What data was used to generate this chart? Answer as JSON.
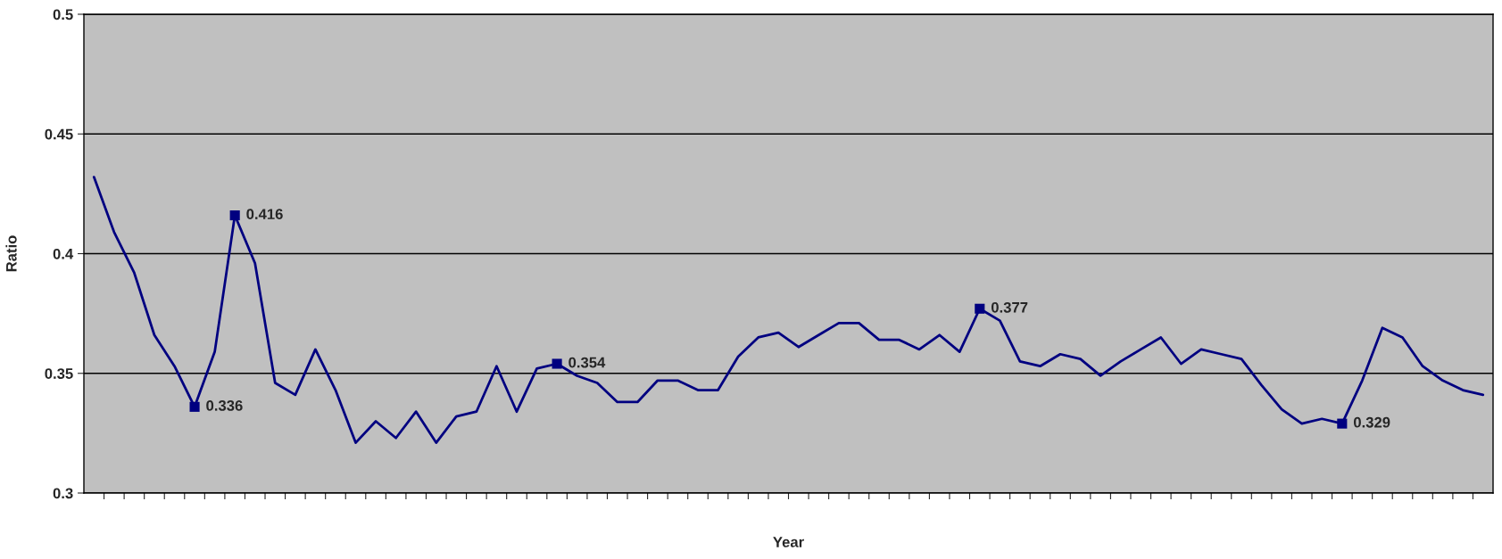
{
  "chart_data": {
    "type": "line",
    "xlabel": "Year",
    "ylabel": "Ratio",
    "categories": [
      null,
      null,
      null,
      null,
      null,
      null,
      null,
      null,
      null,
      null,
      null,
      null,
      null,
      null,
      null,
      null,
      null,
      null,
      null,
      null,
      null,
      null,
      null,
      null,
      null,
      null,
      null,
      null,
      null,
      null,
      null,
      null,
      null,
      null,
      null,
      null,
      null,
      null,
      null,
      null,
      null,
      null,
      null,
      null,
      null,
      null,
      null,
      null,
      null,
      null,
      null,
      null,
      null,
      null,
      null,
      null,
      null,
      null,
      null,
      null,
      null,
      null,
      null,
      null,
      null,
      null,
      null,
      null,
      null,
      null
    ],
    "series": [
      {
        "color": "#000080",
        "values": [
          0.432,
          0.409,
          0.392,
          0.366,
          0.353,
          0.336,
          0.359,
          0.416,
          0.396,
          0.346,
          0.341,
          0.36,
          0.343,
          0.321,
          0.33,
          0.323,
          0.334,
          0.321,
          0.332,
          0.334,
          0.353,
          0.334,
          0.352,
          0.354,
          0.349,
          0.346,
          0.338,
          0.338,
          0.347,
          0.347,
          0.343,
          0.343,
          0.357,
          0.365,
          0.367,
          0.361,
          0.366,
          0.371,
          0.371,
          0.364,
          0.364,
          0.36,
          0.366,
          0.359,
          0.377,
          0.372,
          0.355,
          0.353,
          0.358,
          0.356,
          0.349,
          0.355,
          0.36,
          0.365,
          0.354,
          0.36,
          0.358,
          0.356,
          0.345,
          0.335,
          0.329,
          0.331,
          0.329,
          0.347,
          0.369,
          0.365,
          0.353,
          0.347,
          0.343,
          0.341
        ],
        "value_labels": [
          null,
          null,
          null,
          null,
          null,
          "0.336",
          null,
          "0.416",
          null,
          null,
          null,
          null,
          null,
          null,
          null,
          null,
          null,
          null,
          null,
          null,
          null,
          null,
          null,
          "0.354",
          null,
          null,
          null,
          null,
          null,
          null,
          null,
          null,
          null,
          null,
          null,
          null,
          null,
          null,
          null,
          null,
          null,
          null,
          null,
          null,
          "0.377",
          null,
          null,
          null,
          null,
          null,
          null,
          null,
          null,
          null,
          null,
          null,
          null,
          null,
          null,
          null,
          null,
          null,
          "0.329",
          null,
          null,
          null,
          null,
          null,
          null,
          null
        ]
      }
    ],
    "line_style": "solid",
    "ylim": [
      0.3,
      0.5
    ],
    "yticks": [
      0.3,
      0.35,
      0.4,
      0.45,
      0.5
    ],
    "grid": "y",
    "legend": false,
    "tick_labels": "y"
  }
}
